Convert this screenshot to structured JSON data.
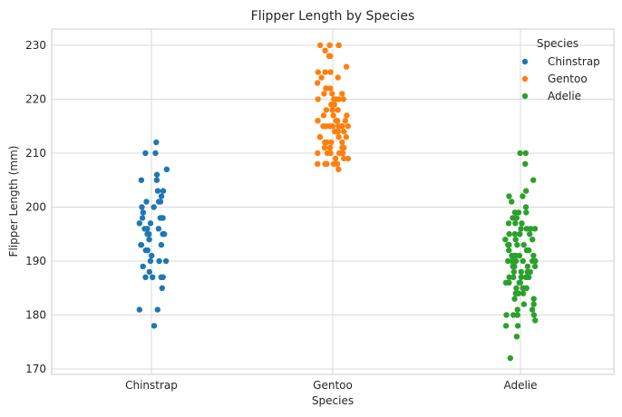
{
  "chart_data": {
    "type": "scatter",
    "title": "Flipper Length by Species",
    "xlabel": "Species",
    "ylabel": "Flipper Length (mm)",
    "ylim": [
      169,
      233
    ],
    "yticks": [
      170,
      180,
      190,
      200,
      210,
      220,
      230
    ],
    "categories": [
      "Chinstrap",
      "Gentoo",
      "Adelie"
    ],
    "grid": true,
    "legend": {
      "title": "Species",
      "placement": "top-right"
    },
    "series": [
      {
        "name": "Chinstrap",
        "category": "Chinstrap",
        "color": "#1f77b4",
        "values": [
          212,
          210,
          210,
          207,
          206,
          205,
          205,
          203,
          203,
          202,
          201,
          201,
          201,
          200,
          200,
          199,
          198,
          198,
          198,
          198,
          197,
          197,
          196,
          196,
          196,
          195,
          195,
          195,
          195,
          194,
          193,
          193,
          193,
          192,
          192,
          191,
          190,
          190,
          190,
          189,
          188,
          187,
          187,
          187,
          187,
          185,
          181,
          181,
          178
        ]
      },
      {
        "name": "Gentoo",
        "category": "Gentoo",
        "color": "#ff7f0e",
        "values": [
          230,
          230,
          230,
          230,
          229,
          228,
          228,
          228,
          226,
          225,
          225,
          225,
          224,
          224,
          223,
          222,
          222,
          222,
          221,
          221,
          221,
          220,
          220,
          220,
          220,
          220,
          219,
          219,
          219,
          218,
          218,
          218,
          217,
          217,
          217,
          216,
          216,
          216,
          216,
          216,
          215,
          215,
          215,
          215,
          215,
          215,
          215,
          215,
          214,
          214,
          214,
          214,
          213,
          213,
          213,
          213,
          212,
          212,
          212,
          212,
          211,
          211,
          211,
          211,
          210,
          210,
          210,
          210,
          210,
          210,
          209,
          209,
          209,
          208,
          208,
          208,
          208,
          208,
          207
        ]
      },
      {
        "name": "Adelie",
        "category": "Adelie",
        "color": "#2ca02c",
        "values": [
          210,
          210,
          208,
          205,
          203,
          202,
          202,
          201,
          200,
          199,
          199,
          199,
          198,
          198,
          198,
          197,
          197,
          197,
          196,
          196,
          196,
          196,
          195,
          195,
          195,
          195,
          195,
          194,
          194,
          194,
          193,
          193,
          193,
          193,
          193,
          192,
          192,
          192,
          192,
          191,
          191,
          191,
          191,
          191,
          190,
          190,
          190,
          190,
          190,
          190,
          190,
          189,
          189,
          189,
          189,
          188,
          188,
          188,
          188,
          187,
          187,
          187,
          187,
          187,
          187,
          186,
          186,
          186,
          186,
          185,
          185,
          185,
          185,
          184,
          184,
          184,
          184,
          183,
          183,
          182,
          182,
          181,
          181,
          180,
          180,
          180,
          180,
          180,
          179,
          178,
          178,
          176,
          172
        ]
      }
    ]
  }
}
